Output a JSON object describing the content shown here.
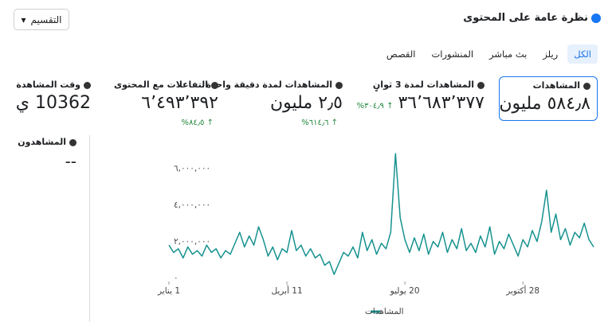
{
  "header": {
    "title": "نظرة عامة على المحتوى",
    "button": "التقسيم"
  },
  "tabs": [
    "الكل",
    "ريلز",
    "بث مباشر",
    "المنشورات",
    "القصص"
  ],
  "metrics": [
    {
      "label": "المشاهدات",
      "value": "٥٨٤٫٨ مليون"
    },
    {
      "label": "المشاهدات لمدة 3 ثوانٍ",
      "value": "٣٦٬٦٨٣٬٣٧٧",
      "change": "٣٠٤٫٩%"
    },
    {
      "label": "المشاهدات لمدة دقيقة واحدة",
      "value": "٢٫٥ مليون",
      "change": "٦١٤٫٦%"
    },
    {
      "label": "التفاعلات مع المحتوى",
      "value": "٦٬٤٩٣٬٣٩٢",
      "change": "٨٤٫٥%"
    },
    {
      "label": "وقت المشاهدة",
      "value": "10362 ي"
    }
  ],
  "viewers": {
    "label": "المشاهدون",
    "value": "--"
  },
  "chart_data": {
    "type": "line",
    "x": [
      0,
      4,
      8,
      12,
      16,
      20,
      24,
      28,
      32,
      36,
      40,
      44,
      48,
      52,
      56,
      60,
      64,
      68,
      72,
      76,
      80,
      84,
      88,
      92,
      96,
      100,
      104,
      108,
      112,
      116,
      120,
      124,
      128,
      132,
      136,
      140,
      144,
      148,
      152,
      156,
      160,
      164,
      168,
      172,
      176,
      180,
      184,
      188,
      192,
      196,
      200,
      204,
      208,
      212,
      216,
      220,
      224,
      228,
      232,
      236,
      240,
      244,
      248,
      252,
      256,
      260,
      264,
      268,
      272,
      276,
      280,
      284,
      288,
      292,
      296,
      300,
      304,
      308,
      312,
      316,
      320,
      324,
      328,
      332,
      336,
      340,
      344,
      348,
      352,
      356,
      360
    ],
    "series": [
      {
        "name": "المشاهدات",
        "color": "#16928f",
        "values": [
          1900000,
          1500000,
          1700000,
          1200000,
          1800000,
          1400000,
          1600000,
          1300000,
          1900000,
          1500000,
          1700000,
          1200000,
          1600000,
          1400000,
          2000000,
          2600000,
          1800000,
          2400000,
          1900000,
          2900000,
          2200000,
          1300000,
          1800000,
          1100000,
          1700000,
          1500000,
          2700000,
          1600000,
          1900000,
          1300000,
          1700000,
          1200000,
          1400000,
          800000,
          1000000,
          300000,
          900000,
          1500000,
          1300000,
          1800000,
          1200000,
          2600000,
          1600000,
          2200000,
          1400000,
          2000000,
          1700000,
          2600000,
          6900000,
          3400000,
          2200000,
          1500000,
          2300000,
          1600000,
          2500000,
          1400000,
          2100000,
          1800000,
          2600000,
          1500000,
          2200000,
          1700000,
          2800000,
          1600000,
          2000000,
          1500000,
          2400000,
          1800000,
          2900000,
          1400000,
          2100000,
          1700000,
          2500000,
          1900000,
          1300000,
          2200000,
          1800000,
          2700000,
          2100000,
          3200000,
          4900000,
          2600000,
          3600000,
          2200000,
          2800000,
          1900000,
          2600000,
          2300000,
          3100000,
          2200000,
          1800000
        ]
      }
    ],
    "xlim": [
      0,
      360
    ],
    "xticks": [
      {
        "value": 0,
        "label": "1 يناير"
      },
      {
        "value": 100,
        "label": "11 أبريل"
      },
      {
        "value": 200,
        "label": "20 يوليو"
      },
      {
        "value": 300,
        "label": "28 أكتوبر"
      }
    ],
    "ylim": [
      0,
      7000000
    ],
    "yticks": [
      {
        "value": 0,
        "label": "٠"
      },
      {
        "value": 2000000,
        "label": "٢,٠٠٠,٠٠٠"
      },
      {
        "value": 4000000,
        "label": "٤,٠٠٠,٠٠٠"
      },
      {
        "value": 6000000,
        "label": "٦,٠٠٠,٠٠٠"
      }
    ],
    "grid": false
  }
}
